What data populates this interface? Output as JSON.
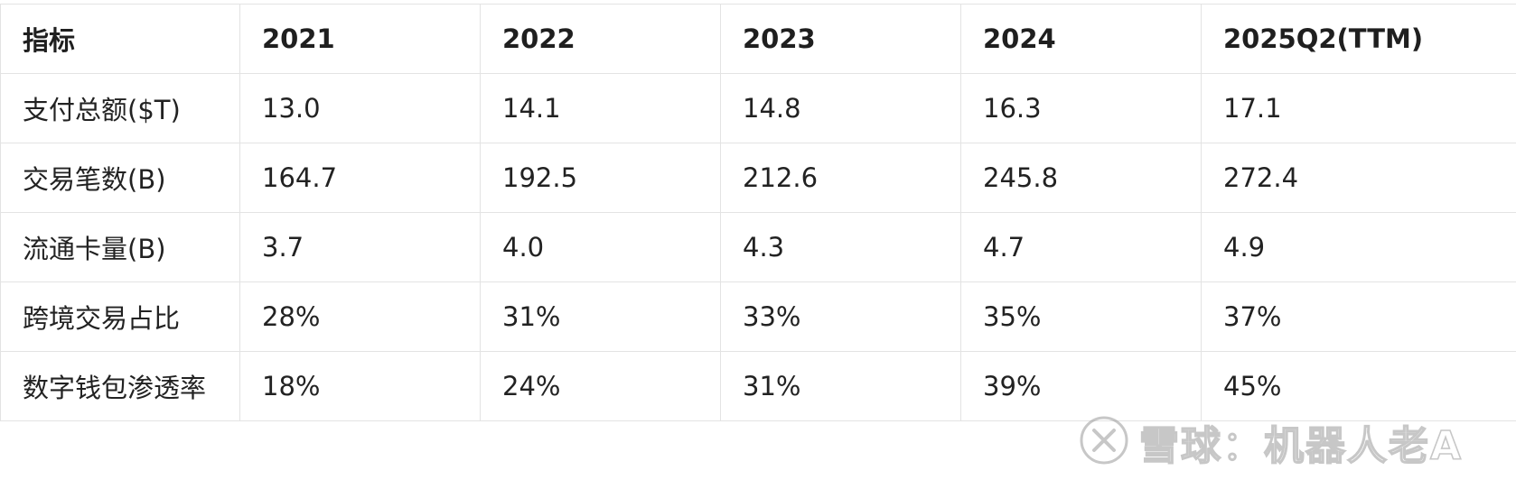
{
  "table": {
    "headers": [
      "指标",
      "2021",
      "2022",
      "2023",
      "2024",
      "2025Q2(TTM)"
    ],
    "rows": [
      [
        "支付总额($T)",
        "13.0",
        "14.1",
        "14.8",
        "16.3",
        "17.1"
      ],
      [
        "交易笔数(B)",
        "164.7",
        "192.5",
        "212.6",
        "245.8",
        "272.4"
      ],
      [
        "流通卡量(B)",
        "3.7",
        "4.0",
        "4.3",
        "4.7",
        "4.9"
      ],
      [
        "跨境交易占比",
        "28%",
        "31%",
        "33%",
        "35%",
        "37%"
      ],
      [
        "数字钱包渗透率",
        "18%",
        "24%",
        "31%",
        "39%",
        "45%"
      ]
    ]
  },
  "watermark": {
    "text": "雪球：机器人老A",
    "icon": "xueqiu-logo-icon"
  },
  "colors": {
    "border": "#e3e3e3",
    "text": "#222222",
    "header_text": "#1f1f1f",
    "background": "#ffffff",
    "watermark": "#9a9a9a"
  }
}
